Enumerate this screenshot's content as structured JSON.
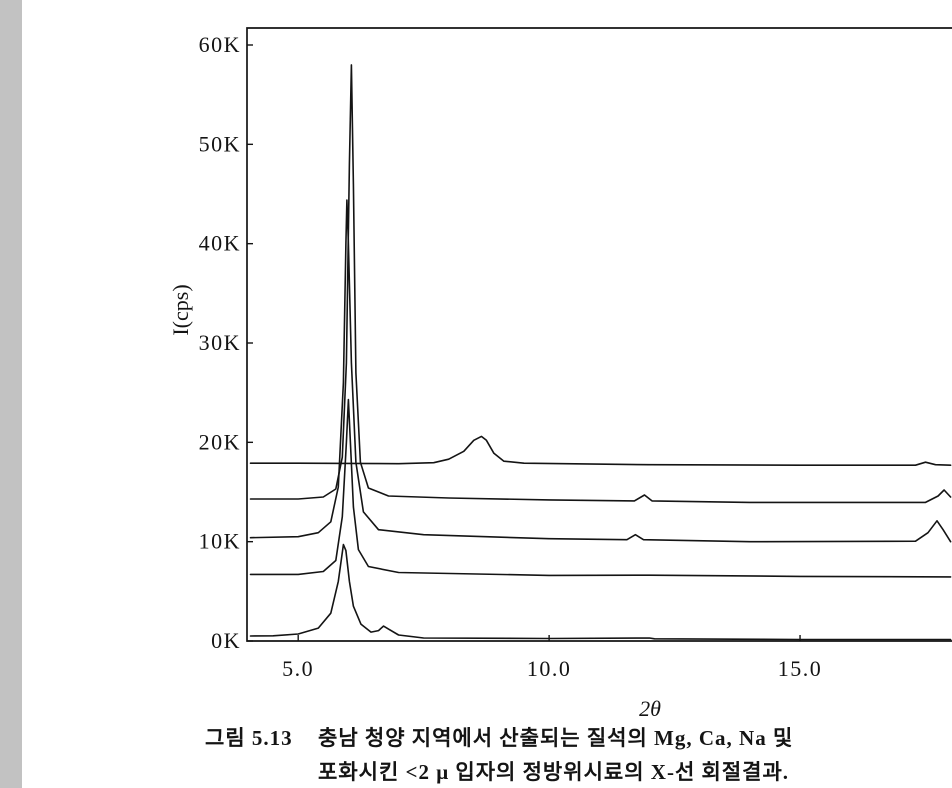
{
  "colors": {
    "ink": "#141414",
    "paper": "#ffffff",
    "margin_strip": "#c2c2c2"
  },
  "caption": {
    "figure_number": "그림 5.13",
    "line1": "충남 청양 지역에서 산출되는 질석의 Mg, Ca, Na 및",
    "line2": "포화시킨 <2 μ 입자의 정방위시료의 X-선 회절결과."
  },
  "chart_data": {
    "type": "line",
    "title": "",
    "xlabel": "2θ",
    "ylabel": "I(cps)",
    "xlim": [
      4.0,
      18.0
    ],
    "ylim": [
      0,
      60000
    ],
    "grid": false,
    "legend": "none",
    "x_ticks": [
      {
        "value": 5,
        "label": "5.0"
      },
      {
        "value": 10,
        "label": "10.0"
      },
      {
        "value": 15,
        "label": "15.0"
      }
    ],
    "y_ticks": [
      {
        "value": 0,
        "label": "0K"
      },
      {
        "value": 10000,
        "label": "10K"
      },
      {
        "value": 20000,
        "label": "20K"
      },
      {
        "value": 30000,
        "label": "30K"
      },
      {
        "value": 40000,
        "label": "40K"
      },
      {
        "value": 50000,
        "label": "50K"
      },
      {
        "value": 60000,
        "label": "60K"
      }
    ],
    "series": [
      {
        "points": [
          [
            4.05,
            17900
          ],
          [
            5.0,
            17900
          ],
          [
            6.0,
            17880
          ],
          [
            7.0,
            17850
          ],
          [
            7.7,
            17950
          ],
          [
            8.0,
            18300
          ],
          [
            8.3,
            19100
          ],
          [
            8.5,
            20200
          ],
          [
            8.65,
            20600
          ],
          [
            8.75,
            20200
          ],
          [
            8.9,
            18900
          ],
          [
            9.1,
            18100
          ],
          [
            9.5,
            17900
          ],
          [
            12.0,
            17750
          ],
          [
            15.0,
            17700
          ],
          [
            17.3,
            17700
          ],
          [
            17.5,
            18000
          ],
          [
            17.7,
            17750
          ],
          [
            18.0,
            17700
          ]
        ]
      },
      {
        "points": [
          [
            4.05,
            14300
          ],
          [
            5.0,
            14300
          ],
          [
            5.5,
            14500
          ],
          [
            5.75,
            15300
          ],
          [
            5.88,
            18500
          ],
          [
            5.96,
            28000
          ],
          [
            6.02,
            48000
          ],
          [
            6.06,
            58000
          ],
          [
            6.1,
            46000
          ],
          [
            6.15,
            27000
          ],
          [
            6.24,
            18000
          ],
          [
            6.4,
            15400
          ],
          [
            6.8,
            14600
          ],
          [
            8.0,
            14400
          ],
          [
            10.0,
            14200
          ],
          [
            11.7,
            14100
          ],
          [
            11.9,
            14700
          ],
          [
            12.05,
            14100
          ],
          [
            14.0,
            13950
          ],
          [
            17.5,
            13950
          ],
          [
            17.75,
            14600
          ],
          [
            17.87,
            15200
          ],
          [
            18.0,
            14500
          ]
        ]
      },
      {
        "points": [
          [
            4.05,
            10400
          ],
          [
            5.0,
            10500
          ],
          [
            5.4,
            10900
          ],
          [
            5.65,
            12000
          ],
          [
            5.8,
            15500
          ],
          [
            5.9,
            26000
          ],
          [
            5.95,
            40000
          ],
          [
            5.97,
            44400
          ],
          [
            6.0,
            40000
          ],
          [
            6.06,
            28000
          ],
          [
            6.15,
            18000
          ],
          [
            6.3,
            13000
          ],
          [
            6.6,
            11200
          ],
          [
            7.5,
            10700
          ],
          [
            10.0,
            10300
          ],
          [
            11.55,
            10200
          ],
          [
            11.72,
            10700
          ],
          [
            11.88,
            10200
          ],
          [
            14.0,
            10000
          ],
          [
            17.3,
            10050
          ],
          [
            17.55,
            10900
          ],
          [
            17.73,
            12100
          ],
          [
            17.85,
            11200
          ],
          [
            18.0,
            10000
          ]
        ]
      },
      {
        "points": [
          [
            4.05,
            6700
          ],
          [
            5.0,
            6700
          ],
          [
            5.5,
            7000
          ],
          [
            5.75,
            8100
          ],
          [
            5.88,
            12500
          ],
          [
            5.96,
            20000
          ],
          [
            6.0,
            24300
          ],
          [
            6.04,
            20000
          ],
          [
            6.1,
            13500
          ],
          [
            6.2,
            9200
          ],
          [
            6.4,
            7500
          ],
          [
            7.0,
            6900
          ],
          [
            10.0,
            6600
          ],
          [
            12.0,
            6620
          ],
          [
            15.0,
            6500
          ],
          [
            18.0,
            6450
          ]
        ]
      },
      {
        "points": [
          [
            4.05,
            500
          ],
          [
            4.5,
            520
          ],
          [
            5.0,
            700
          ],
          [
            5.4,
            1300
          ],
          [
            5.65,
            2800
          ],
          [
            5.8,
            6000
          ],
          [
            5.9,
            9700
          ],
          [
            5.95,
            9100
          ],
          [
            6.02,
            6000
          ],
          [
            6.1,
            3500
          ],
          [
            6.25,
            1700
          ],
          [
            6.45,
            900
          ],
          [
            6.6,
            1050
          ],
          [
            6.7,
            1500
          ],
          [
            6.8,
            1200
          ],
          [
            7.0,
            600
          ],
          [
            7.5,
            300
          ],
          [
            10.0,
            250
          ],
          [
            12.0,
            300
          ],
          [
            12.1,
            220
          ],
          [
            15.0,
            150
          ],
          [
            18.0,
            150
          ]
        ]
      }
    ]
  }
}
